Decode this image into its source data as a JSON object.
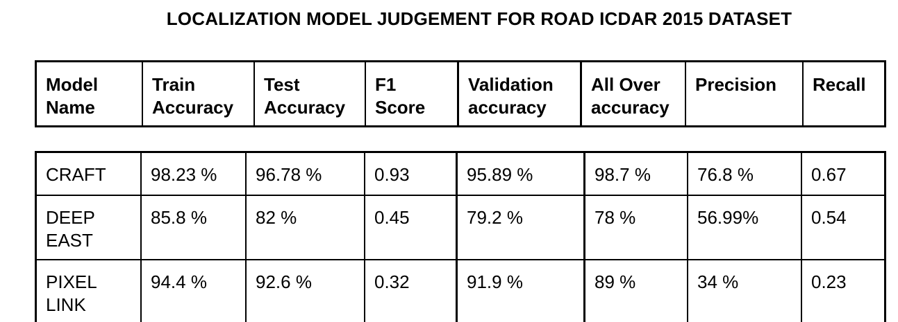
{
  "title": "LOCALIZATION MODEL JUDGEMENT FOR ROAD ICDAR 2015 DATASET",
  "headers": [
    [
      "Model",
      "Name"
    ],
    [
      "Train",
      "Accuracy"
    ],
    [
      "Test",
      "Accuracy"
    ],
    [
      "F1",
      "Score"
    ],
    [
      "Validation",
      "accuracy"
    ],
    [
      "All Over",
      "accuracy"
    ],
    [
      "Precision"
    ],
    [
      "Recall"
    ]
  ],
  "rows": [
    {
      "model": [
        "CRAFT"
      ],
      "train_accuracy": "98.23 %",
      "test_accuracy": "96.78 %",
      "f1_score": "0.93",
      "validation_accuracy": "95.89 %",
      "all_over_accuracy": "98.7 %",
      "precision": "76.8 %",
      "recall": "0.67"
    },
    {
      "model": [
        "DEEP",
        "EAST"
      ],
      "train_accuracy": "85.8 %",
      "test_accuracy": "82 %",
      "f1_score": "0.45",
      "validation_accuracy": "79.2 %",
      "all_over_accuracy": "78 %",
      "precision": "56.99%",
      "recall": "0.54"
    },
    {
      "model": [
        "PIXEL",
        "LINK"
      ],
      "train_accuracy": "94.4 %",
      "test_accuracy": "92.6 %",
      "f1_score": "0.32",
      "validation_accuracy": "91.9 %",
      "all_over_accuracy": "89 %",
      "precision": "34 %",
      "recall": "0.23"
    }
  ]
}
